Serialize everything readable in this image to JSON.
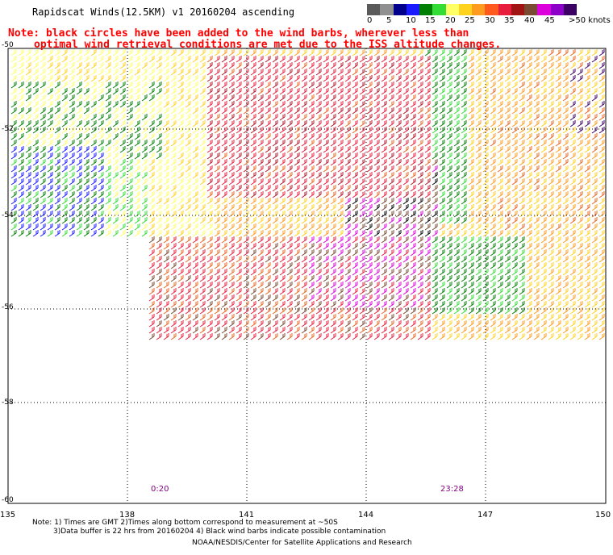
{
  "title": "Rapidscat Winds(12.5KM) v1 20160204 ascending",
  "note": {
    "line1": "Note: black circles have been added to the wind barbs, wherever less than",
    "line2": "optimal wind retrieval conditions are met due to the ISS altitude changes."
  },
  "colorbar": {
    "colors": [
      "#5a5a5a",
      "#909090",
      "#00008c",
      "#1a1aff",
      "#008000",
      "#33dd33",
      "#ffff66",
      "#ffd21e",
      "#ff9b1e",
      "#ff5a1e",
      "#e61e3c",
      "#a01414",
      "#7a4a32",
      "#dc00dc",
      "#8c00c8",
      "#3c0064"
    ],
    "labels": [
      "0",
      "5",
      "10",
      "15",
      "20",
      "25",
      "30",
      "35",
      "40",
      "45",
      ">50 knots"
    ]
  },
  "axes": {
    "lat_labels": [
      "-50",
      "-52",
      "-54",
      "-56",
      "-58",
      "-60"
    ],
    "lon_labels": [
      "135",
      "138",
      "141",
      "144",
      "147",
      "150"
    ]
  },
  "time_labels": [
    "0:20",
    "23:28"
  ],
  "footer": {
    "line1": "Note: 1) Times are GMT 2)Times along bottom correspond to measurement at ~50S",
    "line2": "3)Data buffer is 22 hrs from 20160204 4) Black wind barbs indicate possible contamination",
    "line3": "NOAA/NESDIS/Center for Satellite Applications and Research"
  }
}
